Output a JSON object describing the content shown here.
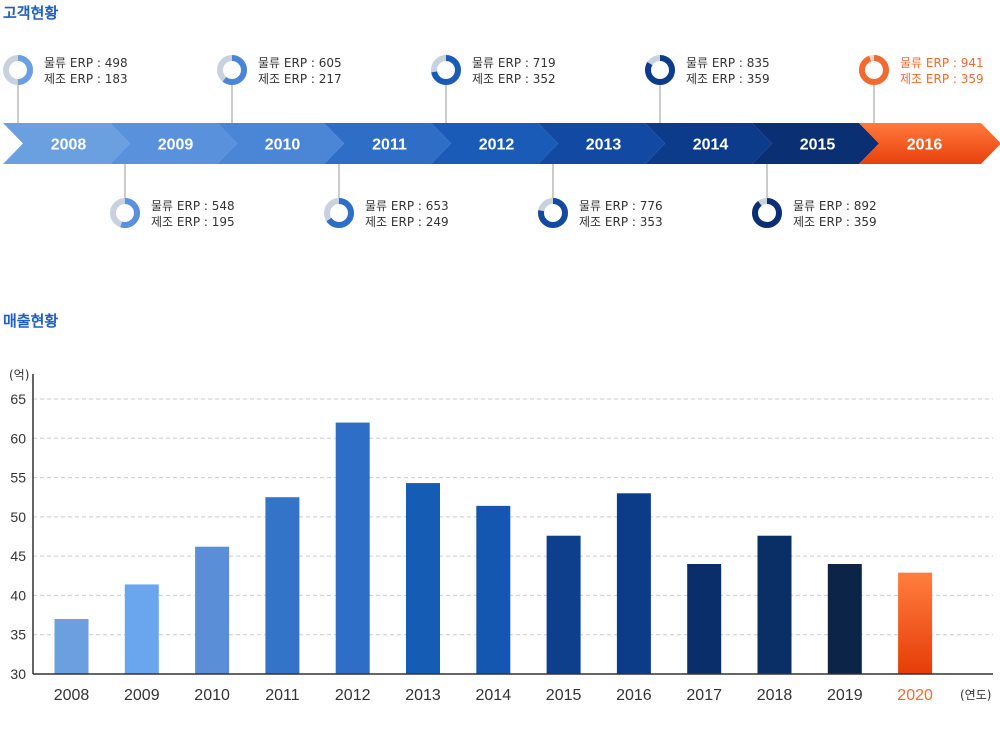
{
  "customer_section": {
    "title": "고객현황",
    "title_color": "#1f5fbf",
    "highlight_color": "#f26a2e",
    "items": [
      {
        "year": "2008",
        "logistics": "물류 ERP : 498",
        "manufacturing": "제조 ERP : 183",
        "logistics_value": 498,
        "manufacturing_value": 183,
        "color": "#6a9fe0",
        "highlight": false
      },
      {
        "year": "2009",
        "logistics": "물류 ERP : 548",
        "manufacturing": "제조 ERP : 195",
        "logistics_value": 548,
        "manufacturing_value": 195,
        "color": "#5a91dc",
        "highlight": false
      },
      {
        "year": "2010",
        "logistics": "물류 ERP : 605",
        "manufacturing": "제조 ERP : 217",
        "logistics_value": 605,
        "manufacturing_value": 217,
        "color": "#4b86d6",
        "highlight": false
      },
      {
        "year": "2011",
        "logistics": "물류 ERP : 653",
        "manufacturing": "제조 ERP : 249",
        "logistics_value": 653,
        "manufacturing_value": 249,
        "color": "#2f6ec7",
        "highlight": false
      },
      {
        "year": "2012",
        "logistics": "물류 ERP : 719",
        "manufacturing": "제조 ERP : 352",
        "logistics_value": 719,
        "manufacturing_value": 352,
        "color": "#1b5bb8",
        "highlight": false
      },
      {
        "year": "2013",
        "logistics": "물류 ERP : 776",
        "manufacturing": "제조 ERP : 353",
        "logistics_value": 776,
        "manufacturing_value": 353,
        "color": "#124aa3",
        "highlight": false
      },
      {
        "year": "2014",
        "logistics": "물류 ERP : 835",
        "manufacturing": "제조 ERP : 359",
        "logistics_value": 835,
        "manufacturing_value": 359,
        "color": "#0d3b8c",
        "highlight": false
      },
      {
        "year": "2015",
        "logistics": "물류 ERP : 892",
        "manufacturing": "제조 ERP : 359",
        "logistics_value": 892,
        "manufacturing_value": 359,
        "color": "#0a2f73",
        "highlight": false
      },
      {
        "year": "2016",
        "logistics": "물류 ERP : 941",
        "manufacturing": "제조 ERP : 359",
        "logistics_value": 941,
        "manufacturing_value": 359,
        "color": "#f25a1e",
        "highlight": true
      }
    ]
  },
  "sales_section": {
    "title": "매출현황",
    "title_color": "#1f5fbf"
  },
  "chart_data": {
    "type": "bar",
    "title": "매출현황",
    "ylabel": "(억)",
    "xlabel": "(연도)",
    "ylim": [
      30,
      67
    ],
    "yticks": [
      30,
      35,
      40,
      45,
      50,
      55,
      60,
      65
    ],
    "grid": true,
    "categories": [
      "2008",
      "2009",
      "2010",
      "2011",
      "2012",
      "2013",
      "2014",
      "2015",
      "2016",
      "2017",
      "2018",
      "2019",
      "2020"
    ],
    "values": [
      37,
      41.4,
      46.2,
      52.5,
      62,
      54.3,
      51.4,
      47.6,
      53,
      44,
      47.6,
      44,
      42.9
    ],
    "colors": [
      "#6a9fe0",
      "#6aa6ee",
      "#5a8fd8",
      "#3374c8",
      "#2f6ec6",
      "#155cb5",
      "#1457b0",
      "#0d3f8c",
      "#0c3c88",
      "#092e69",
      "#0a2f66",
      "#0b2447",
      "#f26a2e"
    ],
    "highlight_category": "2020",
    "highlight_color": "#f26a2e"
  }
}
